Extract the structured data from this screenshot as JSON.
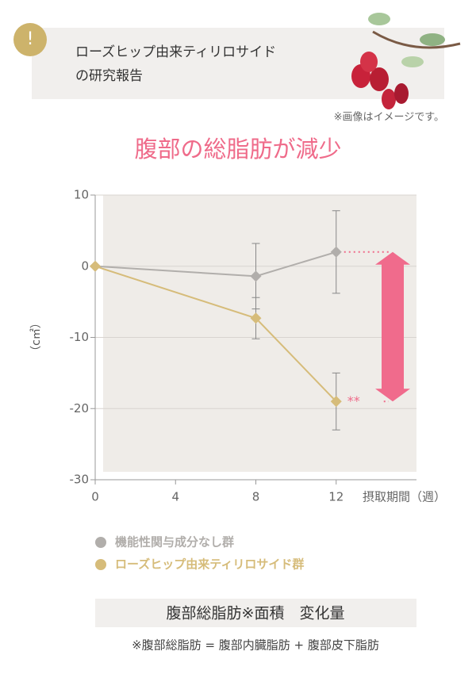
{
  "header": {
    "icon": "!",
    "title_lines": [
      "ローズヒップ由来ティリロサイド",
      "の研究報告"
    ]
  },
  "image_note": "※画像はイメージです。",
  "chart_data": {
    "type": "line",
    "title": "腹部の総脂肪が減少",
    "x": [
      0,
      8,
      12
    ],
    "series": [
      {
        "name": "機能性関与成分なし群",
        "color": "#b1aeab",
        "values": [
          0,
          -1.4,
          2
        ],
        "errors": [
          null,
          4.6,
          5.8
        ]
      },
      {
        "name": "ローズヒップ由来ティリロサイド群",
        "color": "#d6bc7a",
        "values": [
          0,
          -7.3,
          -19
        ],
        "errors": [
          null,
          2.9,
          4
        ]
      }
    ],
    "xlim": [
      0,
      16
    ],
    "ylim": [
      -30,
      10
    ],
    "xticks": [
      0,
      4,
      8,
      12
    ],
    "yticks": [
      -30,
      -20,
      -10,
      0,
      10
    ],
    "x_label": "摂取期間（週）",
    "y_label": "（c㎡）",
    "annotation": "**",
    "grid": true
  },
  "caption": "腹部総脂肪※面積　変化量",
  "footnote": "※腹部総脂肪 = 腹部内臓脂肪 + 腹部皮下脂肪"
}
